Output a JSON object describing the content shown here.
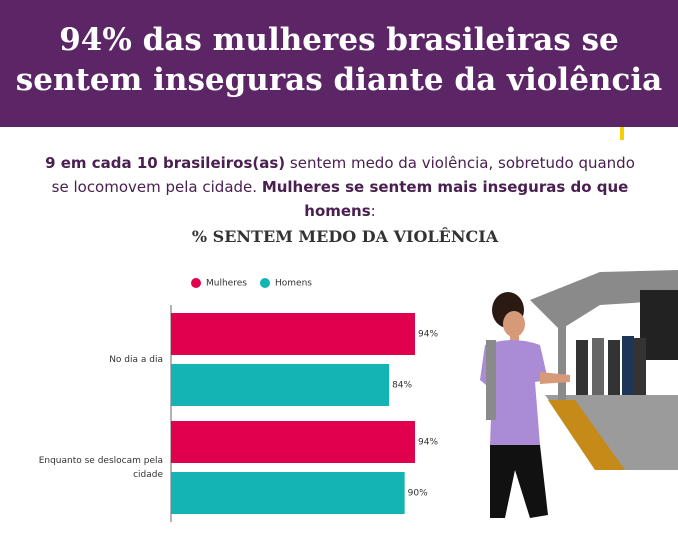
{
  "header": {
    "title": "94% das mulheres brasileiras se sentem inseguras diante da violência"
  },
  "subtitle": [
    {
      "text": "9 em cada 10 brasileiros(as)",
      "bold": true
    },
    {
      "text": " sentem medo da violência, sobretudo quando se locomovem pela cidade. ",
      "bold": false
    },
    {
      "text": "Mulheres se sentem mais inseguras do que homens",
      "bold": true
    },
    {
      "text": ":",
      "bold": false
    }
  ],
  "chart_data": {
    "type": "barh",
    "title": "% SENTEM MEDO DA VIOLÊNCIA",
    "categories": [
      "No dia a dia",
      "Enquanto se deslocam pela cidade"
    ],
    "series": [
      {
        "name": "Mulheres",
        "color": "#e0004d",
        "values": [
          94,
          94
        ],
        "value_labels": [
          "94%",
          "94%"
        ]
      },
      {
        "name": "Homens",
        "color": "#14b4b4",
        "values": [
          84,
          90
        ],
        "value_labels": [
          "84%",
          "90%"
        ]
      }
    ],
    "xlim": [
      0,
      100
    ],
    "legend": "top"
  }
}
